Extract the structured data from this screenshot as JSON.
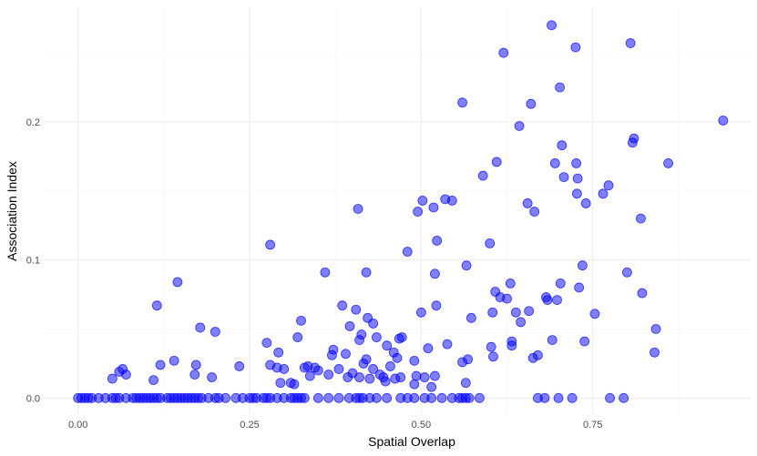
{
  "chart_data": {
    "type": "scatter",
    "title": "",
    "xlabel": "Spatial Overlap",
    "ylabel": "Association Index",
    "xlim": [
      -0.05,
      0.98
    ],
    "ylim": [
      -0.011,
      0.283
    ],
    "grid": true,
    "legend": "none",
    "point_color": "#0000ff",
    "x_ticks": [
      {
        "value": 0.0,
        "label": "0.00"
      },
      {
        "value": 0.25,
        "label": "0.25"
      },
      {
        "value": 0.5,
        "label": "0.50"
      },
      {
        "value": 0.75,
        "label": "0.75"
      }
    ],
    "y_ticks": [
      {
        "value": 0.0,
        "label": "0.0"
      },
      {
        "value": 0.1,
        "label": "0.1"
      },
      {
        "value": 0.2,
        "label": "0.2"
      }
    ],
    "points": [
      {
        "x": 0.0,
        "y": 0.0
      },
      {
        "x": 0.005,
        "y": 0.0
      },
      {
        "x": 0.01,
        "y": 0.0
      },
      {
        "x": 0.015,
        "y": 0.0
      },
      {
        "x": 0.02,
        "y": 0.0
      },
      {
        "x": 0.03,
        "y": 0.0
      },
      {
        "x": 0.04,
        "y": 0.0
      },
      {
        "x": 0.05,
        "y": 0.0
      },
      {
        "x": 0.055,
        "y": 0.0
      },
      {
        "x": 0.06,
        "y": 0.0
      },
      {
        "x": 0.07,
        "y": 0.0
      },
      {
        "x": 0.08,
        "y": 0.0
      },
      {
        "x": 0.085,
        "y": 0.0
      },
      {
        "x": 0.09,
        "y": 0.0
      },
      {
        "x": 0.095,
        "y": 0.0
      },
      {
        "x": 0.1,
        "y": 0.0
      },
      {
        "x": 0.105,
        "y": 0.0
      },
      {
        "x": 0.11,
        "y": 0.0
      },
      {
        "x": 0.115,
        "y": 0.0
      },
      {
        "x": 0.12,
        "y": 0.0
      },
      {
        "x": 0.13,
        "y": 0.0
      },
      {
        "x": 0.135,
        "y": 0.0
      },
      {
        "x": 0.14,
        "y": 0.0
      },
      {
        "x": 0.145,
        "y": 0.0
      },
      {
        "x": 0.15,
        "y": 0.0
      },
      {
        "x": 0.155,
        "y": 0.0
      },
      {
        "x": 0.16,
        "y": 0.0
      },
      {
        "x": 0.165,
        "y": 0.0
      },
      {
        "x": 0.17,
        "y": 0.0
      },
      {
        "x": 0.175,
        "y": 0.0
      },
      {
        "x": 0.18,
        "y": 0.0
      },
      {
        "x": 0.19,
        "y": 0.0
      },
      {
        "x": 0.2,
        "y": 0.0
      },
      {
        "x": 0.205,
        "y": 0.0
      },
      {
        "x": 0.215,
        "y": 0.0
      },
      {
        "x": 0.23,
        "y": 0.0
      },
      {
        "x": 0.24,
        "y": 0.0
      },
      {
        "x": 0.25,
        "y": 0.0
      },
      {
        "x": 0.255,
        "y": 0.0
      },
      {
        "x": 0.26,
        "y": 0.0
      },
      {
        "x": 0.27,
        "y": 0.0
      },
      {
        "x": 0.275,
        "y": 0.0
      },
      {
        "x": 0.28,
        "y": 0.0
      },
      {
        "x": 0.29,
        "y": 0.0
      },
      {
        "x": 0.3,
        "y": 0.0
      },
      {
        "x": 0.31,
        "y": 0.0
      },
      {
        "x": 0.315,
        "y": 0.0
      },
      {
        "x": 0.32,
        "y": 0.0
      },
      {
        "x": 0.325,
        "y": 0.0
      },
      {
        "x": 0.33,
        "y": 0.0
      },
      {
        "x": 0.35,
        "y": 0.0
      },
      {
        "x": 0.365,
        "y": 0.0
      },
      {
        "x": 0.38,
        "y": 0.0
      },
      {
        "x": 0.395,
        "y": 0.0
      },
      {
        "x": 0.405,
        "y": 0.0
      },
      {
        "x": 0.41,
        "y": 0.0
      },
      {
        "x": 0.415,
        "y": 0.0
      },
      {
        "x": 0.425,
        "y": 0.0
      },
      {
        "x": 0.435,
        "y": 0.0
      },
      {
        "x": 0.45,
        "y": 0.0
      },
      {
        "x": 0.47,
        "y": 0.0
      },
      {
        "x": 0.48,
        "y": 0.0
      },
      {
        "x": 0.49,
        "y": 0.0
      },
      {
        "x": 0.505,
        "y": 0.0
      },
      {
        "x": 0.515,
        "y": 0.0
      },
      {
        "x": 0.53,
        "y": 0.0
      },
      {
        "x": 0.545,
        "y": 0.0
      },
      {
        "x": 0.555,
        "y": 0.0
      },
      {
        "x": 0.56,
        "y": 0.0
      },
      {
        "x": 0.565,
        "y": 0.0
      },
      {
        "x": 0.57,
        "y": 0.0
      },
      {
        "x": 0.585,
        "y": 0.0
      },
      {
        "x": 0.67,
        "y": 0.0
      },
      {
        "x": 0.68,
        "y": 0.0
      },
      {
        "x": 0.7,
        "y": 0.0
      },
      {
        "x": 0.72,
        "y": 0.0
      },
      {
        "x": 0.775,
        "y": 0.0
      },
      {
        "x": 0.795,
        "y": 0.0
      },
      {
        "x": 0.05,
        "y": 0.014
      },
      {
        "x": 0.06,
        "y": 0.019
      },
      {
        "x": 0.065,
        "y": 0.021
      },
      {
        "x": 0.07,
        "y": 0.017
      },
      {
        "x": 0.11,
        "y": 0.013
      },
      {
        "x": 0.115,
        "y": 0.067
      },
      {
        "x": 0.12,
        "y": 0.024
      },
      {
        "x": 0.14,
        "y": 0.027
      },
      {
        "x": 0.145,
        "y": 0.084
      },
      {
        "x": 0.17,
        "y": 0.017
      },
      {
        "x": 0.172,
        "y": 0.024
      },
      {
        "x": 0.178,
        "y": 0.051
      },
      {
        "x": 0.195,
        "y": 0.015
      },
      {
        "x": 0.2,
        "y": 0.048
      },
      {
        "x": 0.235,
        "y": 0.023
      },
      {
        "x": 0.275,
        "y": 0.04
      },
      {
        "x": 0.28,
        "y": 0.024
      },
      {
        "x": 0.28,
        "y": 0.111
      },
      {
        "x": 0.29,
        "y": 0.022
      },
      {
        "x": 0.292,
        "y": 0.033
      },
      {
        "x": 0.295,
        "y": 0.011
      },
      {
        "x": 0.3,
        "y": 0.021
      },
      {
        "x": 0.31,
        "y": 0.011
      },
      {
        "x": 0.315,
        "y": 0.01
      },
      {
        "x": 0.32,
        "y": 0.044
      },
      {
        "x": 0.325,
        "y": 0.056
      },
      {
        "x": 0.33,
        "y": 0.022
      },
      {
        "x": 0.335,
        "y": 0.023
      },
      {
        "x": 0.338,
        "y": 0.016
      },
      {
        "x": 0.345,
        "y": 0.022
      },
      {
        "x": 0.35,
        "y": 0.02
      },
      {
        "x": 0.36,
        "y": 0.091
      },
      {
        "x": 0.365,
        "y": 0.017
      },
      {
        "x": 0.37,
        "y": 0.031
      },
      {
        "x": 0.372,
        "y": 0.035
      },
      {
        "x": 0.38,
        "y": 0.021
      },
      {
        "x": 0.385,
        "y": 0.067
      },
      {
        "x": 0.39,
        "y": 0.032
      },
      {
        "x": 0.393,
        "y": 0.015
      },
      {
        "x": 0.396,
        "y": 0.052
      },
      {
        "x": 0.4,
        "y": 0.018
      },
      {
        "x": 0.405,
        "y": 0.064
      },
      {
        "x": 0.408,
        "y": 0.137
      },
      {
        "x": 0.41,
        "y": 0.042
      },
      {
        "x": 0.41,
        "y": 0.015
      },
      {
        "x": 0.413,
        "y": 0.046
      },
      {
        "x": 0.416,
        "y": 0.025
      },
      {
        "x": 0.42,
        "y": 0.028
      },
      {
        "x": 0.42,
        "y": 0.091
      },
      {
        "x": 0.422,
        "y": 0.058
      },
      {
        "x": 0.425,
        "y": 0.014
      },
      {
        "x": 0.43,
        "y": 0.021
      },
      {
        "x": 0.43,
        "y": 0.054
      },
      {
        "x": 0.435,
        "y": 0.044
      },
      {
        "x": 0.44,
        "y": 0.017
      },
      {
        "x": 0.445,
        "y": 0.015
      },
      {
        "x": 0.448,
        "y": 0.012
      },
      {
        "x": 0.45,
        "y": 0.038
      },
      {
        "x": 0.455,
        "y": 0.023
      },
      {
        "x": 0.46,
        "y": 0.033
      },
      {
        "x": 0.462,
        "y": 0.014
      },
      {
        "x": 0.465,
        "y": 0.029
      },
      {
        "x": 0.468,
        "y": 0.043
      },
      {
        "x": 0.47,
        "y": 0.015
      },
      {
        "x": 0.472,
        "y": 0.044
      },
      {
        "x": 0.48,
        "y": 0.106
      },
      {
        "x": 0.49,
        "y": 0.027
      },
      {
        "x": 0.49,
        "y": 0.01
      },
      {
        "x": 0.493,
        "y": 0.016
      },
      {
        "x": 0.495,
        "y": 0.135
      },
      {
        "x": 0.5,
        "y": 0.062
      },
      {
        "x": 0.502,
        "y": 0.143
      },
      {
        "x": 0.505,
        "y": 0.015
      },
      {
        "x": 0.51,
        "y": 0.036
      },
      {
        "x": 0.515,
        "y": 0.008
      },
      {
        "x": 0.518,
        "y": 0.138
      },
      {
        "x": 0.52,
        "y": 0.016
      },
      {
        "x": 0.52,
        "y": 0.09
      },
      {
        "x": 0.522,
        "y": 0.067
      },
      {
        "x": 0.523,
        "y": 0.114
      },
      {
        "x": 0.535,
        "y": 0.144
      },
      {
        "x": 0.538,
        "y": 0.039
      },
      {
        "x": 0.545,
        "y": 0.143
      },
      {
        "x": 0.56,
        "y": 0.214
      },
      {
        "x": 0.56,
        "y": 0.026
      },
      {
        "x": 0.565,
        "y": 0.011
      },
      {
        "x": 0.566,
        "y": 0.096
      },
      {
        "x": 0.568,
        "y": 0.028
      },
      {
        "x": 0.573,
        "y": 0.058
      },
      {
        "x": 0.59,
        "y": 0.161
      },
      {
        "x": 0.6,
        "y": 0.112
      },
      {
        "x": 0.602,
        "y": 0.037
      },
      {
        "x": 0.604,
        "y": 0.062
      },
      {
        "x": 0.605,
        "y": 0.03
      },
      {
        "x": 0.608,
        "y": 0.077
      },
      {
        "x": 0.61,
        "y": 0.171
      },
      {
        "x": 0.615,
        "y": 0.073
      },
      {
        "x": 0.62,
        "y": 0.25
      },
      {
        "x": 0.625,
        "y": 0.072
      },
      {
        "x": 0.63,
        "y": 0.083
      },
      {
        "x": 0.632,
        "y": 0.038
      },
      {
        "x": 0.632,
        "y": 0.041
      },
      {
        "x": 0.638,
        "y": 0.062
      },
      {
        "x": 0.643,
        "y": 0.197
      },
      {
        "x": 0.645,
        "y": 0.055
      },
      {
        "x": 0.655,
        "y": 0.141
      },
      {
        "x": 0.657,
        "y": 0.063
      },
      {
        "x": 0.66,
        "y": 0.213
      },
      {
        "x": 0.663,
        "y": 0.029
      },
      {
        "x": 0.665,
        "y": 0.135
      },
      {
        "x": 0.67,
        "y": 0.031
      },
      {
        "x": 0.682,
        "y": 0.073
      },
      {
        "x": 0.684,
        "y": 0.071
      },
      {
        "x": 0.69,
        "y": 0.27
      },
      {
        "x": 0.691,
        "y": 0.042
      },
      {
        "x": 0.695,
        "y": 0.17
      },
      {
        "x": 0.698,
        "y": 0.071
      },
      {
        "x": 0.702,
        "y": 0.225
      },
      {
        "x": 0.703,
        "y": 0.083
      },
      {
        "x": 0.705,
        "y": 0.183
      },
      {
        "x": 0.708,
        "y": 0.16
      },
      {
        "x": 0.725,
        "y": 0.254
      },
      {
        "x": 0.726,
        "y": 0.17
      },
      {
        "x": 0.727,
        "y": 0.148
      },
      {
        "x": 0.728,
        "y": 0.159
      },
      {
        "x": 0.73,
        "y": 0.08
      },
      {
        "x": 0.735,
        "y": 0.096
      },
      {
        "x": 0.738,
        "y": 0.041
      },
      {
        "x": 0.74,
        "y": 0.141
      },
      {
        "x": 0.753,
        "y": 0.061
      },
      {
        "x": 0.765,
        "y": 0.148
      },
      {
        "x": 0.773,
        "y": 0.154
      },
      {
        "x": 0.8,
        "y": 0.091
      },
      {
        "x": 0.805,
        "y": 0.257
      },
      {
        "x": 0.808,
        "y": 0.185
      },
      {
        "x": 0.81,
        "y": 0.188
      },
      {
        "x": 0.82,
        "y": 0.13
      },
      {
        "x": 0.822,
        "y": 0.076
      },
      {
        "x": 0.84,
        "y": 0.033
      },
      {
        "x": 0.842,
        "y": 0.05
      },
      {
        "x": 0.86,
        "y": 0.17
      },
      {
        "x": 0.94,
        "y": 0.201
      }
    ]
  }
}
